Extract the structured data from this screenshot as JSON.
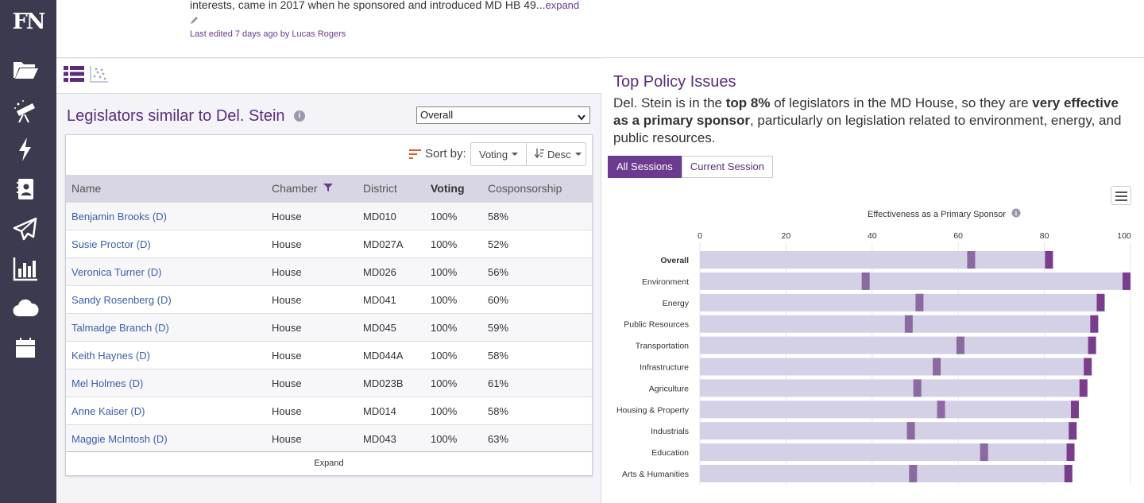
{
  "sidebar": {
    "logo": "FN",
    "items": [
      {
        "icon": "folder-icon"
      },
      {
        "icon": "telescope-icon"
      },
      {
        "icon": "lightning-icon"
      },
      {
        "icon": "contact-book-icon"
      },
      {
        "icon": "paper-plane-icon"
      },
      {
        "icon": "bar-chart-icon"
      },
      {
        "icon": "cloud-icon"
      },
      {
        "icon": "calendar-icon"
      }
    ]
  },
  "profile": {
    "description_tail": "interests, came in 2017 when he sponsored and introduced MD HB 49...",
    "expand_link": "expand",
    "last_edited": "Last edited 7 days ago by Lucas Rogers"
  },
  "similar": {
    "title": "Legislators similar to Del. Stein",
    "filter_selected": "Overall",
    "sort_label": "Sort by:",
    "sort_field": "Voting",
    "sort_order": "Desc",
    "columns": [
      "Name",
      "Chamber",
      "District",
      "Voting",
      "Cosponsorship"
    ],
    "rows": [
      {
        "name": "Benjamin Brooks (D)",
        "chamber": "House",
        "district": "MD010",
        "voting": "100%",
        "cosponsorship": "58%"
      },
      {
        "name": "Susie Proctor (D)",
        "chamber": "House",
        "district": "MD027A",
        "voting": "100%",
        "cosponsorship": "52%"
      },
      {
        "name": "Veronica Turner (D)",
        "chamber": "House",
        "district": "MD026",
        "voting": "100%",
        "cosponsorship": "56%"
      },
      {
        "name": "Sandy Rosenberg (D)",
        "chamber": "House",
        "district": "MD041",
        "voting": "100%",
        "cosponsorship": "60%"
      },
      {
        "name": "Talmadge Branch (D)",
        "chamber": "House",
        "district": "MD045",
        "voting": "100%",
        "cosponsorship": "59%"
      },
      {
        "name": "Keith Haynes (D)",
        "chamber": "House",
        "district": "MD044A",
        "voting": "100%",
        "cosponsorship": "58%"
      },
      {
        "name": "Mel Holmes (D)",
        "chamber": "House",
        "district": "MD023B",
        "voting": "100%",
        "cosponsorship": "61%"
      },
      {
        "name": "Anne Kaiser (D)",
        "chamber": "House",
        "district": "MD014",
        "voting": "100%",
        "cosponsorship": "58%"
      },
      {
        "name": "Maggie McIntosh (D)",
        "chamber": "House",
        "district": "MD043",
        "voting": "100%",
        "cosponsorship": "63%"
      }
    ],
    "expand_label": "Expand"
  },
  "policy": {
    "title": "Top Policy Issues",
    "text_1": "Del. Stein is in the ",
    "text_bold_1": "top 8%",
    "text_2": " of legislators in the MD House, so they are ",
    "text_bold_2": "very effective as a primary sponsor",
    "text_3": ", particularly on legislation related to environment, energy, and public resources.",
    "tabs": [
      "All Sessions",
      "Current Session"
    ],
    "active_tab": "All Sessions"
  },
  "colors": {
    "purple_dark": "#6a3b8f",
    "bar_light": "#d4d0e6",
    "marker": "#8a6aa0",
    "end_marker": "#7a3c8c"
  },
  "chart_data": {
    "type": "bar",
    "title": "Effectiveness as a Primary Sponsor",
    "xlim": [
      0,
      100
    ],
    "xticks": [
      0,
      20,
      40,
      60,
      80,
      100
    ],
    "categories": [
      "Overall",
      "Environment",
      "Energy",
      "Public Resources",
      "Transportation",
      "Infrastructure",
      "Agriculture",
      "Housing & Property",
      "Industrials",
      "Education",
      "Arts & Humanities"
    ],
    "range_end": [
      82,
      100,
      94,
      92.5,
      92,
      91,
      90,
      88,
      87.5,
      87,
      86.5
    ],
    "marker_values": [
      63,
      38.5,
      51,
      48.5,
      60.5,
      55,
      50.5,
      56,
      49,
      66,
      49.5
    ],
    "bold_category": "Overall"
  }
}
